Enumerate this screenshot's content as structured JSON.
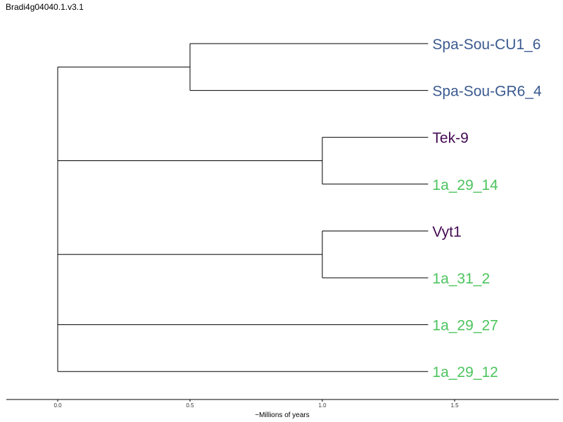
{
  "title": "Bradi4g04040.1.v3.1",
  "axis": {
    "label": "~Millions of years",
    "ticks": [
      "0.0",
      "0.5",
      "1.0",
      "1.5"
    ],
    "tick_values": [
      0,
      0.5,
      1.0,
      1.5
    ],
    "range": [
      -0.2,
      1.9
    ]
  },
  "colors": {
    "blue": "#3b5a8f",
    "purple": "#440a53",
    "green": "#4cc45e"
  },
  "tree": {
    "node_ages": [
      {
        "id": "root",
        "age": 0.0
      },
      {
        "id": "clade_spa",
        "age": 0.5
      },
      {
        "id": "clade_tek",
        "age": 1.0
      },
      {
        "id": "clade_vyt",
        "age": 1.0
      }
    ],
    "tip_age": 1.4,
    "tips": [
      {
        "label": "Spa-Sou-CU1_6",
        "color": "#3b5a8f",
        "parent": "clade_spa"
      },
      {
        "label": "Spa-Sou-GR6_4",
        "color": "#3b5a8f",
        "parent": "clade_spa"
      },
      {
        "label": "Tek-9",
        "color": "#440a53",
        "parent": "clade_tek"
      },
      {
        "label": "1a_29_14",
        "color": "#4cc45e",
        "parent": "clade_tek"
      },
      {
        "label": "Vyt1",
        "color": "#440a53",
        "parent": "clade_vyt"
      },
      {
        "label": "1a_31_2",
        "color": "#4cc45e",
        "parent": "clade_vyt"
      },
      {
        "label": "1a_29_27",
        "color": "#4cc45e",
        "parent": "root"
      },
      {
        "label": "1a_29_12",
        "color": "#4cc45e",
        "parent": "root"
      }
    ]
  }
}
